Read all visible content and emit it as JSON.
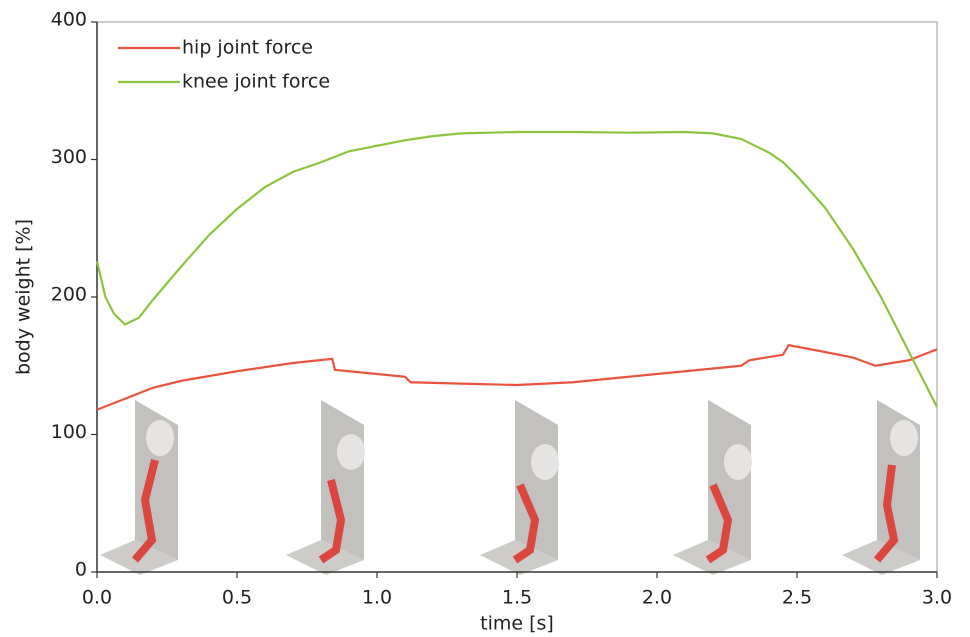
{
  "chart_data": {
    "type": "line",
    "xlabel": "time [s]",
    "ylabel": "body weight [%]",
    "xlim": [
      0,
      3
    ],
    "ylim": [
      0,
      400
    ],
    "xticks": [
      {
        "value": 0,
        "label": "0.0"
      },
      0.5,
      {
        "value": 1,
        "label": "1.0"
      },
      1.5,
      {
        "value": 2,
        "label": "2.0"
      },
      2.5,
      {
        "value": 3,
        "label": "3.0"
      }
    ],
    "yticks": [
      0,
      100,
      200,
      300,
      400
    ],
    "legend": "upper left",
    "series": [
      {
        "name": "hip joint force",
        "color": "#e8553e",
        "x": [
          0,
          0.1,
          0.2,
          0.3,
          0.5,
          0.7,
          0.84,
          0.85,
          1.0,
          1.1,
          1.12,
          1.3,
          1.5,
          1.7,
          1.9,
          2.1,
          2.3,
          2.33,
          2.45,
          2.47,
          2.6,
          2.7,
          2.78,
          2.9,
          3.0
        ],
        "values": [
          118,
          126,
          134,
          139,
          146,
          152,
          155,
          147,
          144,
          142,
          138,
          137,
          136,
          138,
          142,
          146,
          150,
          154,
          158,
          165,
          160,
          156,
          150,
          154,
          162
        ]
      },
      {
        "name": "knee joint force",
        "color": "#8cc43f",
        "x": [
          0,
          0.03,
          0.06,
          0.1,
          0.15,
          0.2,
          0.3,
          0.4,
          0.5,
          0.6,
          0.7,
          0.8,
          0.85,
          0.9,
          1.0,
          1.1,
          1.2,
          1.3,
          1.5,
          1.7,
          1.9,
          2.1,
          2.2,
          2.3,
          2.4,
          2.45,
          2.5,
          2.6,
          2.7,
          2.8,
          2.9,
          3.0
        ],
        "values": [
          226,
          200,
          188,
          180,
          185,
          198,
          222,
          245,
          264,
          280,
          291,
          298,
          302,
          306,
          310,
          314,
          317,
          319,
          320,
          320,
          319.5,
          320,
          319,
          315,
          305,
          298,
          288,
          265,
          235,
          200,
          160,
          120
        ]
      }
    ]
  }
}
